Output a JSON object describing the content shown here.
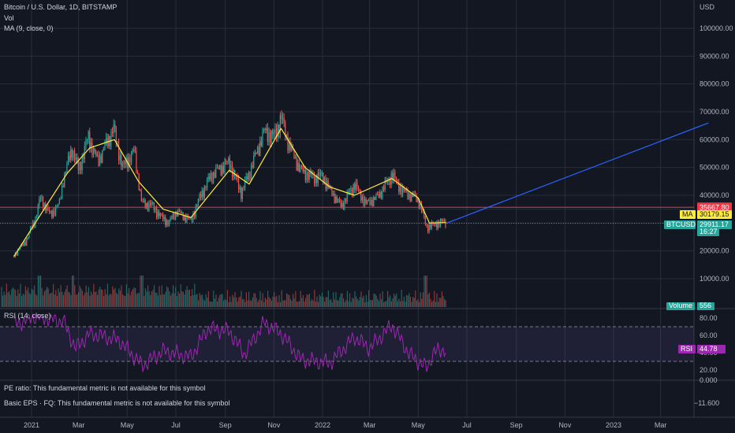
{
  "header": {
    "symbol_title": "Bitcoin / U.S. Dollar, 1D, BITSTAMP",
    "vol_label": "Vol",
    "ma_label": "MA (9, close, 0)"
  },
  "axis_currency": "USD",
  "price_axis_ticks": [
    "100000.00",
    "90000.00",
    "80000.00",
    "70000.00",
    "60000.00",
    "50000.00",
    "40000.00",
    "20000.00",
    "10000.00"
  ],
  "tags": {
    "resistance": {
      "label": "",
      "value": "35667.80",
      "color": "#f23645"
    },
    "ma": {
      "label": "MA",
      "value": "30179.15",
      "color": "#ffeb3b"
    },
    "btcusd": {
      "label": "BTCUSD",
      "value": "29911.17",
      "countdown": "16:27",
      "color": "#26a69a"
    },
    "volume": {
      "label": "Volume",
      "value": "556",
      "color": "#26a69a"
    }
  },
  "rsi_panel": {
    "title": "RSI (14, close)",
    "tag_label": "RSI",
    "tag_value": "44.78",
    "tag_color": "#9c27b0",
    "ticks": [
      "80.00",
      "60.00",
      "40.00",
      "20.00"
    ],
    "upper_band": 70,
    "lower_band": 30
  },
  "fundamentals": {
    "pe_text": "PE ratio: This fundamental metric is not available for this symbol",
    "eps_text": "Basic EPS · FQ: This fundamental metric is not available for this symbol",
    "ticks": [
      "0.000",
      "−11.600"
    ]
  },
  "time_axis": [
    "2021",
    "Mar",
    "May",
    "Jul",
    "Sep",
    "Nov",
    "2022",
    "Mar",
    "May",
    "Jul",
    "Sep",
    "Nov",
    "2023",
    "Mar"
  ],
  "chart_data": {
    "type": "line",
    "symbol": "BTCUSD",
    "timeframe": "1D",
    "y_axis_range": [
      0,
      108000
    ],
    "price_series": {
      "x": [
        "2020-12-10",
        "2020-12-25",
        "2021-01-05",
        "2021-01-12",
        "2021-01-25",
        "2021-02-05",
        "2021-02-10",
        "2021-02-21",
        "2021-03-01",
        "2021-03-13",
        "2021-03-25",
        "2021-04-14",
        "2021-04-25",
        "2021-05-10",
        "2021-05-19",
        "2021-06-01",
        "2021-06-10",
        "2021-06-22",
        "2021-07-01",
        "2021-07-20",
        "2021-08-01",
        "2021-08-14",
        "2021-09-06",
        "2021-09-21",
        "2021-10-01",
        "2021-10-20",
        "2021-11-01",
        "2021-11-10",
        "2021-11-20",
        "2021-12-04",
        "2021-12-20",
        "2022-01-01",
        "2022-01-10",
        "2022-01-24",
        "2022-02-10",
        "2022-02-24",
        "2022-03-10",
        "2022-03-29",
        "2022-04-10",
        "2022-04-20",
        "2022-05-01",
        "2022-05-09",
        "2022-05-12",
        "2022-05-20",
        "2022-06-01",
        "2022-06-05"
      ],
      "close": [
        18500,
        23500,
        31000,
        39000,
        33000,
        37000,
        46000,
        57000,
        49000,
        61000,
        52000,
        64000,
        50000,
        56000,
        37000,
        36500,
        33000,
        30000,
        34000,
        31000,
        40000,
        47000,
        52000,
        41000,
        48000,
        63000,
        61000,
        68000,
        58000,
        49000,
        46500,
        47000,
        42000,
        36000,
        44000,
        37000,
        39000,
        47500,
        42000,
        40000,
        38500,
        31000,
        28500,
        29500,
        30500,
        29900
      ]
    },
    "ma_series": {
      "name": "MA (9, close, 0)",
      "x": [
        "2020-12-10",
        "2021-01-10",
        "2021-02-15",
        "2021-03-15",
        "2021-04-15",
        "2021-05-15",
        "2021-06-15",
        "2021-07-20",
        "2021-09-06",
        "2021-10-01",
        "2021-11-10",
        "2021-12-10",
        "2022-01-10",
        "2022-02-10",
        "2022-03-29",
        "2022-05-01",
        "2022-05-15",
        "2022-06-05"
      ],
      "values": [
        18000,
        32000,
        48000,
        57000,
        60000,
        45000,
        35000,
        32000,
        49000,
        44000,
        64000,
        50000,
        43000,
        40000,
        46000,
        39000,
        30000,
        30179.15
      ]
    },
    "trend_line": {
      "x": [
        "2022-06-05",
        "2023-04-30"
      ],
      "y": [
        29911.17,
        66000
      ]
    },
    "horizontal_line": {
      "price": 35667.8
    },
    "volume_peak_dates": [
      "2021-01-11",
      "2021-02-22",
      "2021-05-19",
      "2022-05-10"
    ],
    "rsi_series": {
      "name": "RSI (14, close)",
      "x": [
        "2020-12-10",
        "2021-01-05",
        "2021-02-10",
        "2021-02-25",
        "2021-03-15",
        "2021-04-20",
        "2021-05-20",
        "2021-06-15",
        "2021-07-20",
        "2021-08-10",
        "2021-09-06",
        "2021-09-25",
        "2021-10-20",
        "2021-11-10",
        "2021-12-05",
        "2022-01-10",
        "2022-02-10",
        "2022-03-01",
        "2022-03-29",
        "2022-04-20",
        "2022-05-12",
        "2022-05-20",
        "2022-06-05"
      ],
      "values": [
        72,
        82,
        76,
        45,
        62,
        55,
        25,
        42,
        35,
        68,
        65,
        38,
        75,
        62,
        32,
        28,
        58,
        45,
        72,
        38,
        22,
        40,
        44.78
      ]
    }
  }
}
